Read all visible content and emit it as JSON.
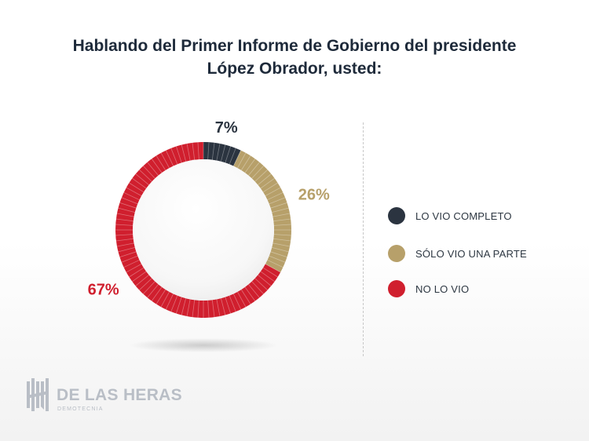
{
  "title": {
    "line1": "Hablando del Primer Informe de Gobierno del presidente",
    "line2": "López Obrador, usted:"
  },
  "chart_data": {
    "type": "pie",
    "title": "Hablando del Primer Informe de Gobierno del presidente López Obrador, usted:",
    "categories": [
      "LO VIO COMPLETO",
      "SÓLO VIO UNA PARTE",
      "NO LO VIO"
    ],
    "values": [
      7,
      26,
      67
    ],
    "labels": [
      "7%",
      "26%",
      "67%"
    ],
    "colors": [
      "#2b3440",
      "#b7a06a",
      "#d01f2e"
    ],
    "legend_position": "right"
  },
  "logo": {
    "name": "DE LAS HERAS",
    "sub": "DEMOTECNIA"
  }
}
